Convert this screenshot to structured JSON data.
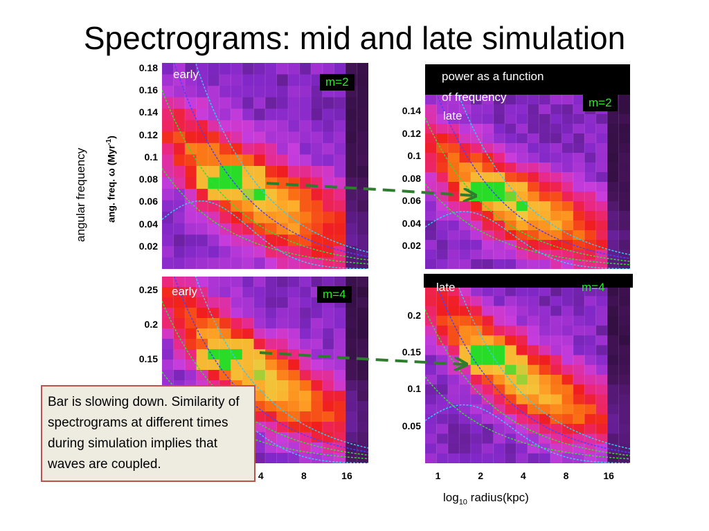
{
  "title": "Spectrograms: mid and late simulation",
  "y_axis_title": "angular frequency",
  "y_axis_inner_title": "ang. freq. ω (Myr",
  "y_axis_inner_sup": "-1",
  "y_axis_inner_close": ")",
  "x_axis_title_main": "log",
  "x_axis_title_sub": "10",
  "x_axis_title_rest": " radius(kpc)",
  "note": "Bar is slowing down. Similarity of spectrograms at different times during simulation implies that waves are coupled.",
  "power_label_line1": "power as a function",
  "power_label_line2": "of frequency",
  "colors": {
    "note_bg": "#eeece1",
    "note_border": "#c0504d",
    "arrow": "#2e7d2e",
    "m_label": "#22ee22"
  },
  "chart_data": [
    {
      "type": "heatmap",
      "panel": "top-left",
      "time_label": "early",
      "mode_label": "m=2",
      "yticks": [
        "0.18",
        "0.16",
        "0.14",
        "0.12",
        "0.1",
        "0.08",
        "0.06",
        "0.04",
        "0.02"
      ],
      "ylim": [
        0.0,
        0.185
      ],
      "peak": {
        "log2_r": 1.25,
        "omega": 0.08
      }
    },
    {
      "type": "heatmap",
      "panel": "top-right",
      "time_label": "late",
      "mode_label": "m=2",
      "yticks": [
        "0.14",
        "0.12",
        "0.1",
        "0.08",
        "0.06",
        "0.04",
        "0.02"
      ],
      "ylim": [
        0.0,
        0.155
      ],
      "peak": {
        "log2_r": 1.2,
        "omega": 0.07
      }
    },
    {
      "type": "heatmap",
      "panel": "bottom-left",
      "time_label": "early",
      "mode_label": "m=4",
      "yticks": [
        "0.25",
        "0.2",
        "0.15"
      ],
      "xticks": [
        "4",
        "8",
        "16"
      ],
      "ylim": [
        0.0,
        0.27
      ],
      "peak": {
        "log2_r": 1.25,
        "omega": 0.155
      }
    },
    {
      "type": "heatmap",
      "panel": "bottom-right",
      "time_label": "late",
      "mode_label": "m=4",
      "yticks": [
        "0.2",
        "0.15",
        "0.1",
        "0.05"
      ],
      "xticks": [
        "1",
        "2",
        "4",
        "8",
        "16"
      ],
      "ylim": [
        0.0,
        0.24
      ],
      "peak": {
        "log2_r": 1.2,
        "omega": 0.145
      }
    }
  ]
}
